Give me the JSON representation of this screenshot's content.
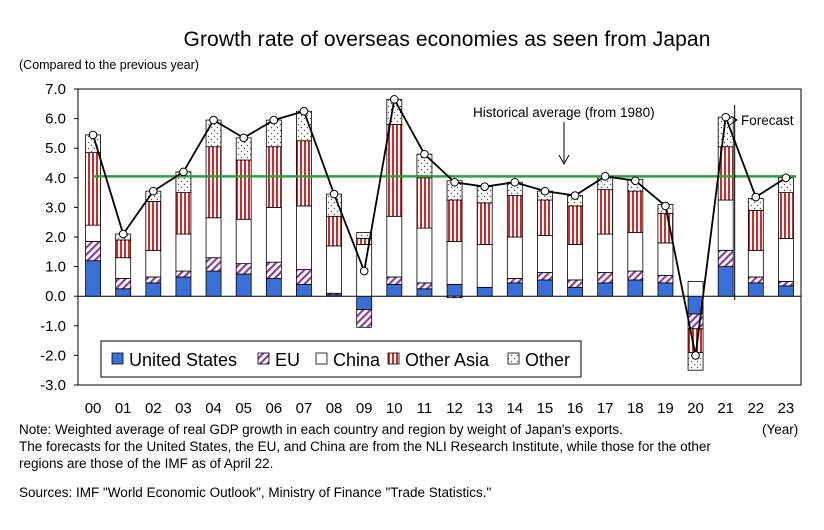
{
  "title": "Growth rate of overseas economies as seen from Japan",
  "unit_label": "(Compared to the previous year)",
  "x_unit_label": "(Year)",
  "notes": [
    "Note: Weighted average of real GDP growth in each country and region by weight of Japan's exports.",
    "The forecasts for the United States, the EU, and China are from the NLI Research Institute, while those for the other",
    "regions are those of the IMF as of April 22."
  ],
  "sources": "Sources: IMF \"World Economic Outlook\", Ministry of Finance \"Trade Statistics.\"",
  "colors": {
    "us": "#3a6fd8",
    "eu": "#8a3fa0",
    "other_asia": "#d02a2a",
    "average_line": "#2ca040",
    "total_line": "#000000"
  },
  "chart_data": {
    "type": "bar",
    "stacked": true,
    "categories": [
      "00",
      "01",
      "02",
      "03",
      "04",
      "05",
      "06",
      "07",
      "08",
      "09",
      "10",
      "11",
      "12",
      "13",
      "14",
      "15",
      "16",
      "17",
      "18",
      "19",
      "20",
      "21",
      "22",
      "23"
    ],
    "ylim": [
      -3.0,
      7.0
    ],
    "y_ticks": [
      "-3.0",
      "-2.0",
      "-1.0",
      "0.0",
      "1.0",
      "2.0",
      "3.0",
      "4.0",
      "5.0",
      "6.0",
      "7.0"
    ],
    "grid": false,
    "legend_position": "bottom-left inside plot",
    "series": [
      {
        "name": "United States",
        "key": "us",
        "values": [
          1.2,
          0.25,
          0.45,
          0.65,
          0.85,
          0.75,
          0.6,
          0.4,
          0.05,
          -0.45,
          0.4,
          0.25,
          0.4,
          0.3,
          0.45,
          0.55,
          0.3,
          0.45,
          0.55,
          0.45,
          -0.6,
          1.0,
          0.45,
          0.35
        ]
      },
      {
        "name": "EU",
        "key": "eu",
        "values": [
          0.65,
          0.35,
          0.2,
          0.2,
          0.45,
          0.35,
          0.55,
          0.5,
          0.05,
          -0.6,
          0.25,
          0.2,
          -0.05,
          0.0,
          0.15,
          0.25,
          0.25,
          0.35,
          0.3,
          0.25,
          -0.5,
          0.55,
          0.2,
          0.15
        ]
      },
      {
        "name": "China",
        "key": "china",
        "values": [
          0.55,
          0.7,
          0.9,
          1.25,
          1.35,
          1.5,
          1.85,
          2.15,
          1.6,
          1.75,
          2.05,
          1.85,
          1.45,
          1.45,
          1.4,
          1.25,
          1.2,
          1.3,
          1.3,
          1.1,
          0.5,
          1.7,
          0.9,
          1.45
        ]
      },
      {
        "name": "Other Asia",
        "key": "other_asia",
        "values": [
          2.45,
          0.6,
          1.65,
          1.4,
          2.4,
          2.0,
          2.05,
          2.2,
          1.0,
          0.2,
          3.1,
          1.7,
          1.4,
          1.4,
          1.4,
          1.2,
          1.3,
          1.5,
          1.4,
          1.0,
          -0.8,
          1.8,
          1.35,
          1.55
        ]
      },
      {
        "name": "Other",
        "key": "other",
        "values": [
          0.6,
          0.2,
          0.35,
          0.7,
          0.9,
          0.75,
          0.9,
          1.0,
          0.75,
          0.2,
          0.85,
          0.8,
          0.65,
          0.55,
          0.45,
          0.3,
          0.35,
          0.45,
          0.4,
          0.3,
          -0.6,
          1.0,
          0.4,
          0.5
        ]
      }
    ],
    "total": {
      "values": [
        5.45,
        2.1,
        3.55,
        4.2,
        5.95,
        5.35,
        5.95,
        6.25,
        3.45,
        0.85,
        6.65,
        4.8,
        3.85,
        3.7,
        3.85,
        3.55,
        3.4,
        4.05,
        3.9,
        3.05,
        -2.0,
        6.05,
        3.35,
        4.0
      ]
    },
    "historical_average": {
      "label": "Historical average (from 1980)",
      "value": 4.05
    },
    "forecast": {
      "label": "Forecast",
      "from_category": "21"
    }
  }
}
